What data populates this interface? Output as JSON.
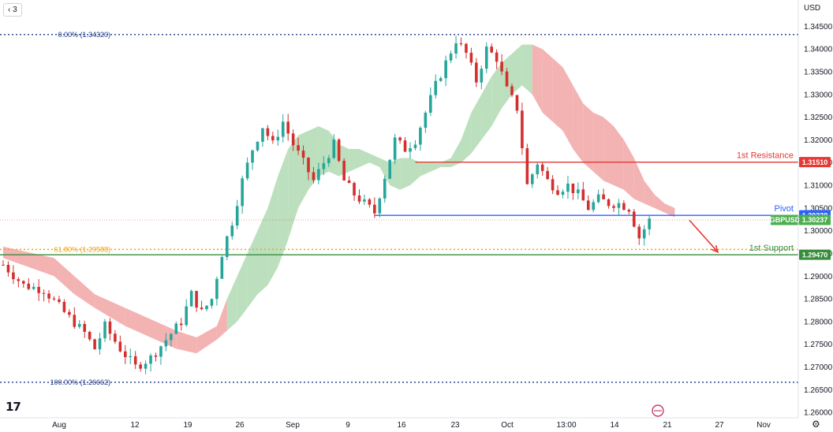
{
  "interval": "3",
  "currency": "USD",
  "colors": {
    "up": "#26a69a",
    "down": "#d32f2f",
    "cloud_bull": "#a5d6a7",
    "cloud_bear": "#ef9a9a",
    "resistance": "#e53935",
    "pivot": "#2962ff",
    "support": "#388e3c",
    "price": "#4caf50",
    "fib_extreme": "#1e3a8a",
    "fib_618": "#f0a30a"
  },
  "chart_data": {
    "type": "candlestick",
    "ylim": [
      1.2588,
      1.3508
    ],
    "y_ticks": [
      "1.35000",
      "1.34500",
      "1.34000",
      "1.33500",
      "1.33000",
      "1.32500",
      "1.32000",
      "1.31500",
      "1.31000",
      "1.30500",
      "1.30000",
      "1.29500",
      "1.29000",
      "1.28500",
      "1.28000",
      "1.27500",
      "1.27000",
      "1.26500",
      "1.26000"
    ],
    "x_ticks": [
      "Aug",
      "12",
      "19",
      "26",
      "Sep",
      "9",
      "16",
      "23",
      "Oct",
      "13:00",
      "14",
      "21",
      "27",
      "Nov"
    ],
    "levels": [
      {
        "label": "1st Resistance",
        "value": 1.3151,
        "tag": "1.31510",
        "color": "#e53935"
      },
      {
        "label": "Pivot",
        "value": 1.30338,
        "tag": "1.30338",
        "color": "#2962ff"
      },
      {
        "label": "1st Support",
        "value": 1.2947,
        "tag": "1.29470",
        "color": "#388e3c"
      }
    ],
    "fib_levels": [
      {
        "label": "0.00% (1.34320)",
        "value": 1.3432
      },
      {
        "label": "61.80% (1.29588)",
        "value": 1.29588
      },
      {
        "label": "100.00% (1.26662)",
        "value": 1.26662
      }
    ],
    "current_price": {
      "symbol": "GBPUSD",
      "value": 1.30237,
      "tag": "1.30237"
    },
    "projection": {
      "from": 1.3023,
      "to": 1.296
    },
    "close_path": [
      [
        0,
        1.2925
      ],
      [
        4,
        1.288
      ],
      [
        8,
        1.287
      ],
      [
        12,
        1.282
      ],
      [
        16,
        1.2775
      ],
      [
        18,
        1.274
      ],
      [
        20,
        1.279
      ],
      [
        23,
        1.274
      ],
      [
        26,
        1.27
      ],
      [
        29,
        1.272
      ],
      [
        32,
        1.276
      ],
      [
        35,
        1.28
      ],
      [
        37,
        1.286
      ],
      [
        39,
        1.282
      ],
      [
        41,
        1.285
      ],
      [
        43,
        1.295
      ],
      [
        45,
        1.302
      ],
      [
        47,
        1.311
      ],
      [
        49,
        1.318
      ],
      [
        51,
        1.323
      ],
      [
        53,
        1.319
      ],
      [
        55,
        1.324
      ],
      [
        57,
        1.319
      ],
      [
        59,
        1.315
      ],
      [
        61,
        1.311
      ],
      [
        63,
        1.315
      ],
      [
        65,
        1.319
      ],
      [
        67,
        1.311
      ],
      [
        69,
        1.308
      ],
      [
        71,
        1.306
      ],
      [
        73,
        1.304
      ],
      [
        75,
        1.312
      ],
      [
        77,
        1.32
      ],
      [
        79,
        1.318
      ],
      [
        81,
        1.32
      ],
      [
        83,
        1.326
      ],
      [
        85,
        1.332
      ],
      [
        87,
        1.337
      ],
      [
        89,
        1.342
      ],
      [
        91,
        1.339
      ],
      [
        93,
        1.333
      ],
      [
        95,
        1.34
      ],
      [
        97,
        1.338
      ],
      [
        99,
        1.331
      ],
      [
        101,
        1.327
      ],
      [
        103,
        1.31
      ],
      [
        105,
        1.315
      ],
      [
        107,
        1.311
      ],
      [
        109,
        1.309
      ],
      [
        111,
        1.31
      ],
      [
        113,
        1.308
      ],
      [
        115,
        1.305
      ],
      [
        117,
        1.307
      ],
      [
        119,
        1.306
      ],
      [
        121,
        1.306
      ],
      [
        123,
        1.305
      ],
      [
        125,
        1.2985
      ],
      [
        127,
        1.3023
      ]
    ],
    "cloud_top": [
      [
        0,
        1.2965
      ],
      [
        10,
        1.294
      ],
      [
        14,
        1.29
      ],
      [
        18,
        1.286
      ],
      [
        24,
        1.283
      ],
      [
        30,
        1.28
      ],
      [
        34,
        1.278
      ],
      [
        38,
        1.2765
      ],
      [
        42,
        1.279
      ],
      [
        44,
        1.285
      ],
      [
        46,
        1.29
      ],
      [
        48,
        1.295
      ],
      [
        50,
        1.3
      ],
      [
        52,
        1.305
      ],
      [
        54,
        1.312
      ],
      [
        56,
        1.318
      ],
      [
        58,
        1.321
      ],
      [
        60,
        1.322
      ],
      [
        62,
        1.323
      ],
      [
        64,
        1.322
      ],
      [
        66,
        1.319
      ],
      [
        68,
        1.318
      ],
      [
        70,
        1.318
      ],
      [
        72,
        1.317
      ],
      [
        74,
        1.316
      ],
      [
        76,
        1.315
      ],
      [
        78,
        1.316
      ],
      [
        80,
        1.316
      ],
      [
        82,
        1.315
      ],
      [
        84,
        1.315
      ],
      [
        86,
        1.315
      ],
      [
        88,
        1.316
      ],
      [
        90,
        1.32
      ],
      [
        92,
        1.326
      ],
      [
        94,
        1.33
      ],
      [
        96,
        1.334
      ],
      [
        98,
        1.337
      ],
      [
        100,
        1.339
      ],
      [
        102,
        1.341
      ],
      [
        104,
        1.341
      ],
      [
        106,
        1.34
      ],
      [
        108,
        1.338
      ],
      [
        110,
        1.336
      ],
      [
        112,
        1.332
      ],
      [
        114,
        1.328
      ],
      [
        116,
        1.326
      ],
      [
        118,
        1.325
      ],
      [
        120,
        1.323
      ],
      [
        122,
        1.32
      ],
      [
        124,
        1.316
      ],
      [
        126,
        1.311
      ],
      [
        128,
        1.308
      ],
      [
        130,
        1.306
      ],
      [
        132,
        1.305
      ]
    ],
    "cloud_bottom": [
      [
        0,
        1.294
      ],
      [
        10,
        1.29
      ],
      [
        14,
        1.286
      ],
      [
        18,
        1.283
      ],
      [
        24,
        1.279
      ],
      [
        30,
        1.276
      ],
      [
        34,
        1.274
      ],
      [
        38,
        1.273
      ],
      [
        42,
        1.276
      ],
      [
        44,
        1.278
      ],
      [
        46,
        1.28
      ],
      [
        48,
        1.283
      ],
      [
        50,
        1.286
      ],
      [
        52,
        1.288
      ],
      [
        54,
        1.292
      ],
      [
        56,
        1.298
      ],
      [
        58,
        1.305
      ],
      [
        60,
        1.309
      ],
      [
        62,
        1.312
      ],
      [
        64,
        1.313
      ],
      [
        66,
        1.312
      ],
      [
        68,
        1.313
      ],
      [
        70,
        1.314
      ],
      [
        72,
        1.315
      ],
      [
        74,
        1.314
      ],
      [
        76,
        1.31
      ],
      [
        78,
        1.309
      ],
      [
        80,
        1.31
      ],
      [
        82,
        1.312
      ],
      [
        84,
        1.313
      ],
      [
        86,
        1.314
      ],
      [
        88,
        1.314
      ],
      [
        90,
        1.315
      ],
      [
        92,
        1.317
      ],
      [
        94,
        1.32
      ],
      [
        96,
        1.323
      ],
      [
        98,
        1.327
      ],
      [
        100,
        1.33
      ],
      [
        102,
        1.332
      ],
      [
        104,
        1.33
      ],
      [
        106,
        1.326
      ],
      [
        108,
        1.324
      ],
      [
        110,
        1.322
      ],
      [
        112,
        1.318
      ],
      [
        114,
        1.315
      ],
      [
        116,
        1.313
      ],
      [
        118,
        1.311
      ],
      [
        120,
        1.31
      ],
      [
        122,
        1.309
      ],
      [
        124,
        1.307
      ],
      [
        126,
        1.306
      ],
      [
        128,
        1.305
      ],
      [
        130,
        1.304
      ],
      [
        132,
        1.303
      ]
    ]
  }
}
